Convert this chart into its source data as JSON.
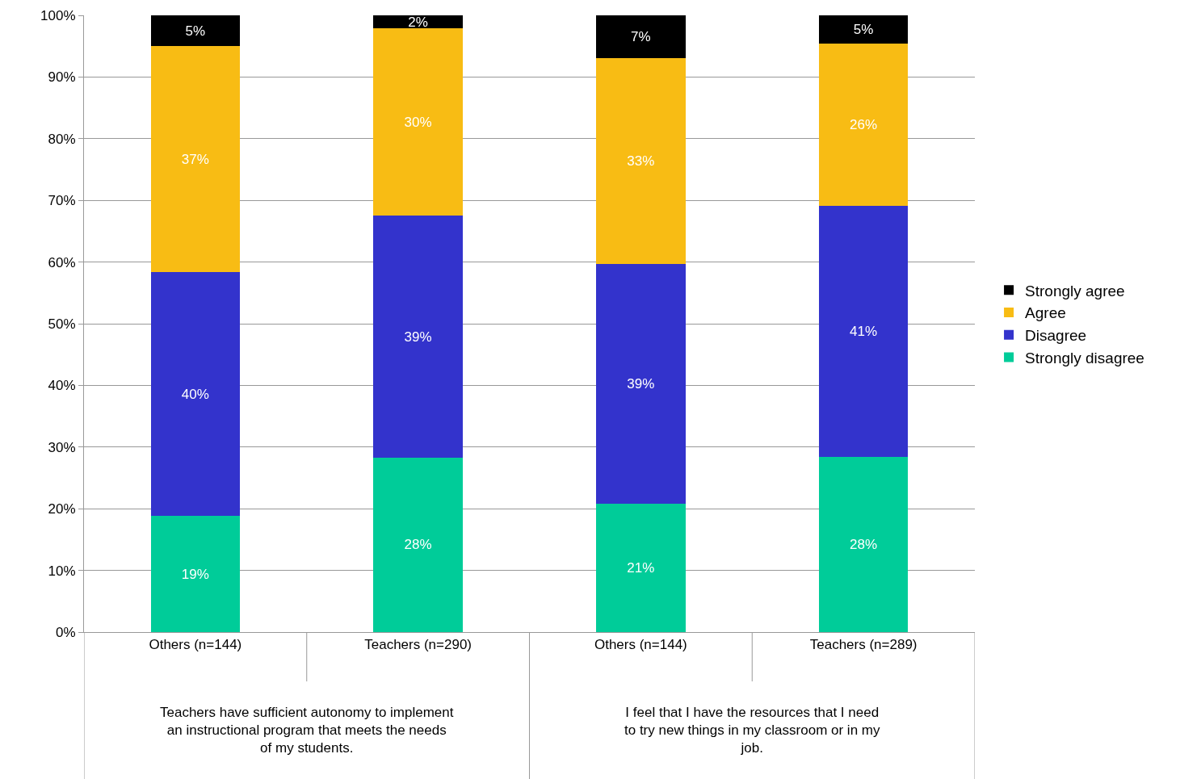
{
  "chart_data": {
    "type": "bar",
    "stacked": true,
    "categories": [
      "Others (n=144)",
      "Teachers (n=290)",
      "Others (n=144)",
      "Teachers (n=289)"
    ],
    "series": [
      {
        "name": "Strongly disagree",
        "color": "#00cc99",
        "values": [
          18.8,
          28.3,
          20.8,
          28.4
        ],
        "value_labels": [
          "19%",
          "28%",
          "21%",
          "28%"
        ]
      },
      {
        "name": "Disagree",
        "color": "#3333cc",
        "values": [
          39.6,
          39.2,
          38.9,
          40.7
        ],
        "value_labels": [
          "40%",
          "39%",
          "39%",
          "41%"
        ]
      },
      {
        "name": "Agree",
        "color": "#f8bc14",
        "values": [
          36.6,
          30.4,
          33.4,
          26.3
        ],
        "value_labels": [
          "37%",
          "30%",
          "33%",
          "26%"
        ]
      },
      {
        "name": "Strongly agree",
        "color": "#000000",
        "values": [
          5.0,
          2.1,
          6.9,
          4.6
        ],
        "value_labels": [
          "5%",
          "2%",
          "7%",
          "5%"
        ]
      }
    ],
    "annotations": [
      "Teachers have sufficient autonomy to implement an instructional program that meets the needs of my students.",
      "I feel that I have the resources that I need to try new things in my classroom or in my job."
    ],
    "ylim": [
      0,
      100
    ],
    "yticks": [
      {
        "value": 0,
        "label": "0%"
      },
      {
        "value": 10,
        "label": "10%"
      },
      {
        "value": 20,
        "label": "20%"
      },
      {
        "value": 30,
        "label": "30%"
      },
      {
        "value": 40,
        "label": "40%"
      },
      {
        "value": 50,
        "label": "50%"
      },
      {
        "value": 60,
        "label": "60%"
      },
      {
        "value": 70,
        "label": "70%"
      },
      {
        "value": 80,
        "label": "80%"
      },
      {
        "value": 90,
        "label": "90%"
      },
      {
        "value": 100,
        "label": "100%"
      }
    ],
    "grid": "y",
    "legend": "right"
  }
}
